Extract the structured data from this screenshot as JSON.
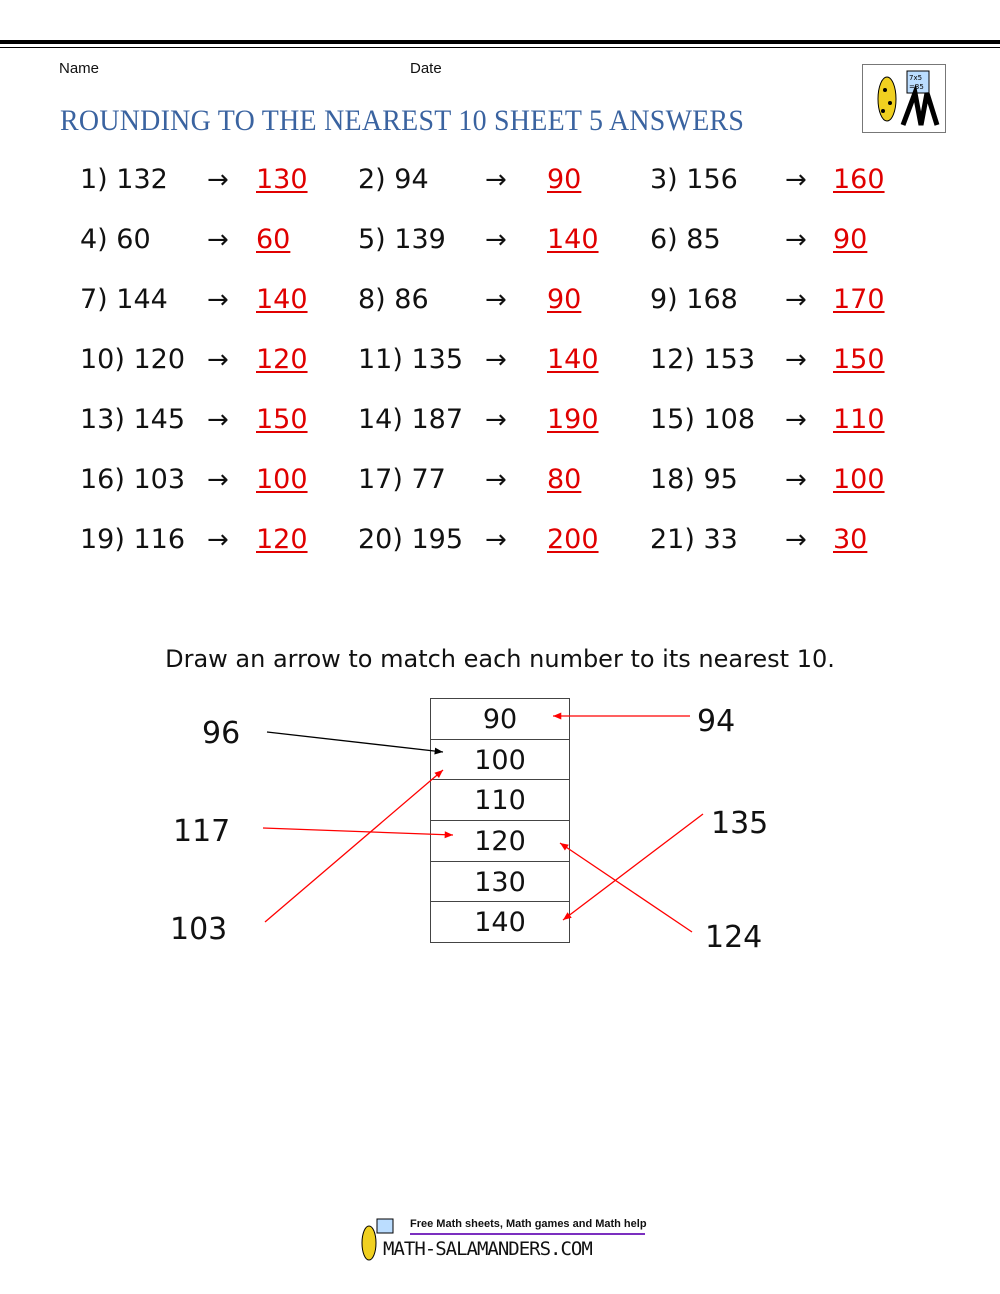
{
  "header": {
    "name_label": "Name",
    "date_label": "Date",
    "title": "ROUNDING TO THE NEAREST 10 SHEET 5 ANSWERS",
    "logo_text": "7x5 = 35"
  },
  "arrow_glyph": "→",
  "questions": [
    {
      "q": "1) 132",
      "a": "130"
    },
    {
      "q": "2) 94",
      "a": "90"
    },
    {
      "q": "3) 156",
      "a": "160"
    },
    {
      "q": "4) 60",
      "a": "60"
    },
    {
      "q": "5) 139",
      "a": "140"
    },
    {
      "q": "6) 85",
      "a": "90"
    },
    {
      "q": "7) 144",
      "a": "140"
    },
    {
      "q": "8) 86",
      "a": "90"
    },
    {
      "q": "9) 168",
      "a": "170"
    },
    {
      "q": "10) 120",
      "a": "120"
    },
    {
      "q": "11) 135",
      "a": "140"
    },
    {
      "q": "12) 153",
      "a": "150"
    },
    {
      "q": "13) 145",
      "a": "150"
    },
    {
      "q": "14) 187",
      "a": "190"
    },
    {
      "q": "15) 108",
      "a": "110"
    },
    {
      "q": "16) 103",
      "a": "100"
    },
    {
      "q": "17) 77",
      "a": "80"
    },
    {
      "q": "18) 95",
      "a": "100"
    },
    {
      "q": "19) 116",
      "a": "120"
    },
    {
      "q": "20) 195",
      "a": "200"
    },
    {
      "q": "21) 33",
      "a": "30"
    }
  ],
  "matching": {
    "instruction": "Draw an arrow to match each number to its nearest 10.",
    "targets": [
      "90",
      "100",
      "110",
      "120",
      "130",
      "140"
    ],
    "numbers": [
      {
        "value": "96",
        "target": "100",
        "color": "#000000"
      },
      {
        "value": "117",
        "target": "120",
        "color": "#ff0000"
      },
      {
        "value": "103",
        "target": "100",
        "color": "#ff0000"
      },
      {
        "value": "94",
        "target": "90",
        "color": "#ff0000"
      },
      {
        "value": "135",
        "target": "140",
        "color": "#ff0000"
      },
      {
        "value": "124",
        "target": "120",
        "color": "#ff0000"
      }
    ]
  },
  "footer": {
    "tagline": "Free Math sheets, Math games and Math help",
    "site": "MATH-SALAMANDERS.COM"
  },
  "colors": {
    "title": "#3a63a0",
    "answer": "#e00000"
  }
}
